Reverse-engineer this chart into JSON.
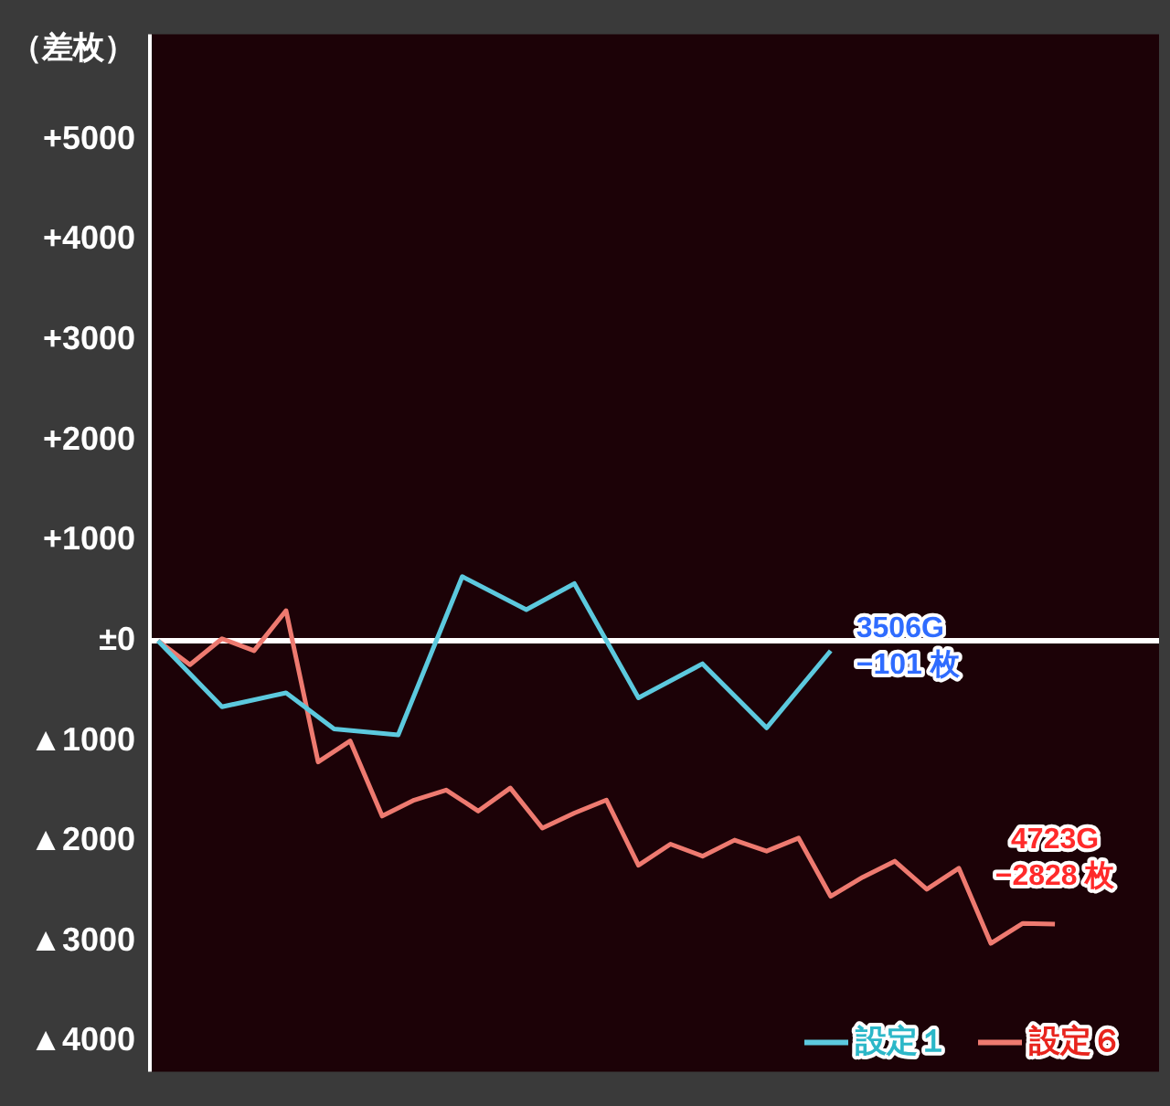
{
  "chart_data": {
    "type": "line",
    "ylabel": "（差枚）",
    "categories": [
      null,
      null,
      null,
      null,
      null,
      null,
      null,
      null,
      null,
      null,
      null,
      null,
      null,
      null,
      null,
      null,
      null,
      null,
      null,
      null,
      null,
      null,
      null,
      null,
      null,
      null,
      null,
      null,
      null,
      null,
      null,
      null,
      null,
      null,
      null,
      null,
      null,
      null,
      null,
      null,
      null,
      null,
      null,
      null,
      null,
      null,
      null,
      null,
      null,
      null,
      null,
      null,
      null,
      null,
      null,
      null,
      null,
      null,
      null,
      null,
      null,
      null,
      null
    ],
    "ylim": [
      -4300,
      6050
    ],
    "yticks": [
      {
        "value": 5000,
        "label": "+5000"
      },
      {
        "value": 4000,
        "label": "+4000"
      },
      {
        "value": 3000,
        "label": "+3000"
      },
      {
        "value": 2000,
        "label": "+2000"
      },
      {
        "value": 1000,
        "label": "+1000"
      },
      {
        "value": 0,
        "label": "±0"
      },
      {
        "value": -1000,
        "label": "▲1000"
      },
      {
        "value": -2000,
        "label": "▲2000"
      },
      {
        "value": -3000,
        "label": "▲3000"
      },
      {
        "value": -4000,
        "label": "▲4000"
      }
    ],
    "grid": false,
    "legend": "bottom right",
    "marker": "none",
    "line_style": "solid",
    "ref_lines": [
      {
        "axis": "y",
        "value": 0,
        "color": "#ffffff"
      }
    ],
    "series": [
      {
        "name": "設定１",
        "color": "#5cc9de",
        "values": [
          0,
          null,
          null,
          null,
          -660,
          null,
          null,
          null,
          -520,
          null,
          null,
          -880,
          null,
          null,
          null,
          -940,
          null,
          null,
          null,
          640,
          null,
          null,
          null,
          310,
          null,
          null,
          570,
          null,
          null,
          null,
          -570,
          null,
          null,
          null,
          -230,
          null,
          null,
          null,
          -870,
          null,
          null,
          null,
          -101,
          null,
          null,
          null,
          null,
          null,
          null,
          null,
          null,
          null,
          null,
          null,
          null,
          null,
          null,
          null,
          null,
          null,
          null,
          null,
          null
        ]
      },
      {
        "name": "設定６",
        "color": "#ee7a70",
        "values": [
          0,
          null,
          -240,
          null,
          20,
          null,
          -100,
          null,
          300,
          null,
          -1210,
          null,
          -1000,
          null,
          -1750,
          null,
          -1590,
          null,
          -1490,
          null,
          -1700,
          null,
          -1470,
          null,
          -1870,
          null,
          -1720,
          null,
          -1590,
          null,
          -2240,
          null,
          -2030,
          null,
          -2150,
          null,
          -1990,
          null,
          -2100,
          null,
          -1970,
          null,
          -2550,
          null,
          -2360,
          null,
          -2200,
          null,
          -2480,
          null,
          -2270,
          null,
          -3020,
          null,
          -2820,
          null,
          -2828,
          null,
          null,
          null,
          null,
          null,
          null
        ]
      }
    ],
    "annotations": [
      "3506G\n−101 枚",
      "4723G\n−2828 枚"
    ]
  }
}
